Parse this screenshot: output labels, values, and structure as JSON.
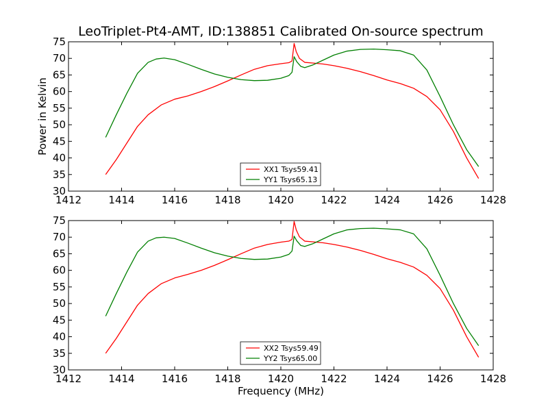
{
  "figure": {
    "title": "LeoTriplet-Pt4-AMT, ID:138851 Calibrated On-source spectrum",
    "xlabel": "Frequency (MHz)"
  },
  "colors": {
    "xx": "#ff0000",
    "yy": "#007f00"
  },
  "chart_data": [
    {
      "type": "line",
      "title": "LeoTriplet-Pt4-AMT, ID:138851 Calibrated On-source spectrum",
      "xlabel": "",
      "ylabel": "Power in Kelvin",
      "xlim": [
        1412,
        1428
      ],
      "ylim": [
        30,
        75
      ],
      "xticks": [
        1412,
        1414,
        1416,
        1418,
        1420,
        1422,
        1424,
        1426,
        1428
      ],
      "yticks": [
        30,
        35,
        40,
        45,
        50,
        55,
        60,
        65,
        70,
        75
      ],
      "grid": false,
      "legend_position": "lower-center",
      "series": [
        {
          "name": "XX1 Tsys59.41",
          "color": "#ff0000",
          "points": [
            [
              1413.4,
              35.0
            ],
            [
              1413.8,
              39.5
            ],
            [
              1414.2,
              44.5
            ],
            [
              1414.6,
              49.5
            ],
            [
              1415.0,
              53.0
            ],
            [
              1415.5,
              56.0
            ],
            [
              1416.0,
              57.7
            ],
            [
              1416.5,
              58.7
            ],
            [
              1417.0,
              60.0
            ],
            [
              1417.5,
              61.5
            ],
            [
              1418.0,
              63.2
            ],
            [
              1418.5,
              65.0
            ],
            [
              1419.0,
              66.7
            ],
            [
              1419.5,
              67.8
            ],
            [
              1420.0,
              68.4
            ],
            [
              1420.3,
              68.7
            ],
            [
              1420.42,
              69.2
            ],
            [
              1420.5,
              74.5
            ],
            [
              1420.58,
              72.0
            ],
            [
              1420.7,
              70.0
            ],
            [
              1420.9,
              68.8
            ],
            [
              1421.2,
              68.6
            ],
            [
              1421.6,
              68.3
            ],
            [
              1422.0,
              67.8
            ],
            [
              1422.5,
              67.0
            ],
            [
              1423.0,
              66.0
            ],
            [
              1423.5,
              64.8
            ],
            [
              1424.0,
              63.5
            ],
            [
              1424.5,
              62.4
            ],
            [
              1425.0,
              61.0
            ],
            [
              1425.5,
              58.5
            ],
            [
              1426.0,
              54.5
            ],
            [
              1426.5,
              48.0
            ],
            [
              1427.0,
              40.0
            ],
            [
              1427.45,
              33.8
            ]
          ]
        },
        {
          "name": "YY1 Tsys65.13",
          "color": "#007f00",
          "points": [
            [
              1413.4,
              46.2
            ],
            [
              1413.8,
              53.0
            ],
            [
              1414.2,
              59.5
            ],
            [
              1414.6,
              65.5
            ],
            [
              1415.0,
              68.8
            ],
            [
              1415.3,
              69.8
            ],
            [
              1415.6,
              70.1
            ],
            [
              1416.0,
              69.6
            ],
            [
              1416.5,
              68.2
            ],
            [
              1417.0,
              66.7
            ],
            [
              1417.5,
              65.3
            ],
            [
              1418.0,
              64.3
            ],
            [
              1418.5,
              63.6
            ],
            [
              1419.0,
              63.3
            ],
            [
              1419.5,
              63.4
            ],
            [
              1420.0,
              64.0
            ],
            [
              1420.3,
              64.8
            ],
            [
              1420.42,
              65.8
            ],
            [
              1420.5,
              70.5
            ],
            [
              1420.6,
              69.0
            ],
            [
              1420.75,
              67.6
            ],
            [
              1420.9,
              67.2
            ],
            [
              1421.2,
              68.0
            ],
            [
              1421.6,
              69.5
            ],
            [
              1422.0,
              71.0
            ],
            [
              1422.5,
              72.2
            ],
            [
              1423.0,
              72.7
            ],
            [
              1423.5,
              72.8
            ],
            [
              1424.0,
              72.6
            ],
            [
              1424.5,
              72.3
            ],
            [
              1425.0,
              71.0
            ],
            [
              1425.5,
              66.5
            ],
            [
              1426.0,
              58.5
            ],
            [
              1426.5,
              50.0
            ],
            [
              1427.0,
              42.5
            ],
            [
              1427.45,
              37.4
            ]
          ]
        }
      ]
    },
    {
      "type": "line",
      "title": "",
      "xlabel": "Frequency (MHz)",
      "ylabel": "",
      "xlim": [
        1412,
        1428
      ],
      "ylim": [
        30,
        75
      ],
      "xticks": [
        1412,
        1414,
        1416,
        1418,
        1420,
        1422,
        1424,
        1426,
        1428
      ],
      "yticks": [
        30,
        35,
        40,
        45,
        50,
        55,
        60,
        65,
        70,
        75
      ],
      "grid": false,
      "legend_position": "lower-center",
      "series": [
        {
          "name": "XX2 Tsys59.49",
          "color": "#ff0000",
          "points": [
            [
              1413.4,
              35.0
            ],
            [
              1413.8,
              39.5
            ],
            [
              1414.2,
              44.5
            ],
            [
              1414.6,
              49.5
            ],
            [
              1415.0,
              53.0
            ],
            [
              1415.5,
              56.0
            ],
            [
              1416.0,
              57.7
            ],
            [
              1416.5,
              58.8
            ],
            [
              1417.0,
              60.0
            ],
            [
              1417.5,
              61.5
            ],
            [
              1418.0,
              63.2
            ],
            [
              1418.5,
              65.0
            ],
            [
              1419.0,
              66.7
            ],
            [
              1419.5,
              67.8
            ],
            [
              1420.0,
              68.5
            ],
            [
              1420.3,
              68.8
            ],
            [
              1420.42,
              69.3
            ],
            [
              1420.5,
              74.7
            ],
            [
              1420.58,
              72.2
            ],
            [
              1420.7,
              70.1
            ],
            [
              1420.9,
              68.8
            ],
            [
              1421.2,
              68.6
            ],
            [
              1421.6,
              68.3
            ],
            [
              1422.0,
              67.8
            ],
            [
              1422.5,
              67.0
            ],
            [
              1423.0,
              66.0
            ],
            [
              1423.5,
              64.8
            ],
            [
              1424.0,
              63.5
            ],
            [
              1424.5,
              62.4
            ],
            [
              1425.0,
              61.0
            ],
            [
              1425.5,
              58.5
            ],
            [
              1426.0,
              54.5
            ],
            [
              1426.5,
              48.0
            ],
            [
              1427.0,
              40.0
            ],
            [
              1427.45,
              33.8
            ]
          ]
        },
        {
          "name": "YY2 Tsys65.00",
          "color": "#007f00",
          "points": [
            [
              1413.4,
              46.2
            ],
            [
              1413.8,
              53.0
            ],
            [
              1414.2,
              59.5
            ],
            [
              1414.6,
              65.5
            ],
            [
              1415.0,
              68.8
            ],
            [
              1415.3,
              69.8
            ],
            [
              1415.6,
              70.0
            ],
            [
              1416.0,
              69.6
            ],
            [
              1416.5,
              68.2
            ],
            [
              1417.0,
              66.7
            ],
            [
              1417.5,
              65.3
            ],
            [
              1418.0,
              64.3
            ],
            [
              1418.5,
              63.6
            ],
            [
              1419.0,
              63.3
            ],
            [
              1419.5,
              63.4
            ],
            [
              1420.0,
              64.0
            ],
            [
              1420.3,
              64.8
            ],
            [
              1420.42,
              65.8
            ],
            [
              1420.5,
              70.3
            ],
            [
              1420.6,
              68.9
            ],
            [
              1420.75,
              67.5
            ],
            [
              1420.9,
              67.2
            ],
            [
              1421.2,
              68.0
            ],
            [
              1421.6,
              69.5
            ],
            [
              1422.0,
              71.0
            ],
            [
              1422.5,
              72.2
            ],
            [
              1423.0,
              72.6
            ],
            [
              1423.5,
              72.7
            ],
            [
              1424.0,
              72.5
            ],
            [
              1424.5,
              72.2
            ],
            [
              1425.0,
              71.0
            ],
            [
              1425.5,
              66.5
            ],
            [
              1426.0,
              58.5
            ],
            [
              1426.5,
              50.0
            ],
            [
              1427.0,
              42.5
            ],
            [
              1427.45,
              37.3
            ]
          ]
        }
      ]
    }
  ]
}
